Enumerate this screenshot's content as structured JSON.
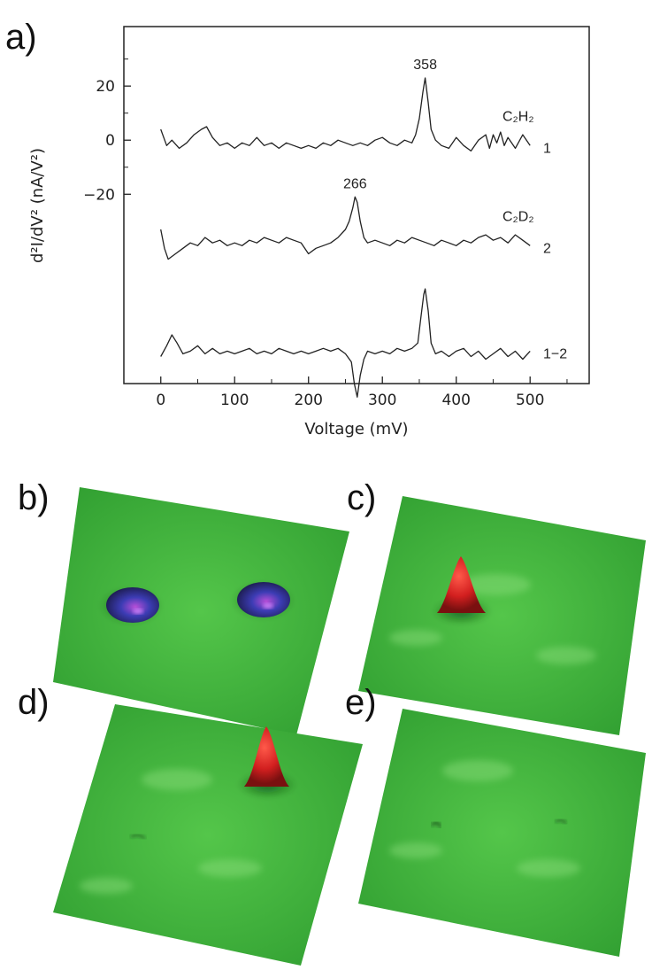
{
  "panels": {
    "a": "a)",
    "b": "b)",
    "c": "c)",
    "d": "d)",
    "e": "e)"
  },
  "chart_data": {
    "type": "line",
    "xlabel": "Voltage (mV)",
    "ylabel": "d²I/dV² (nA/V²)",
    "xlim": [
      -50,
      580
    ],
    "ylim": [
      -90,
      42
    ],
    "x_ticks": [
      "0",
      "100",
      "200",
      "300",
      "400",
      "500"
    ],
    "y_ticks": [
      "20",
      "0",
      "−20"
    ],
    "grid": false,
    "series": [
      {
        "name": "C₂H₂",
        "number": "1",
        "peak_label": "358",
        "x": [
          0,
          8,
          15,
          25,
          35,
          45,
          55,
          62,
          70,
          80,
          90,
          100,
          110,
          120,
          130,
          140,
          150,
          160,
          170,
          180,
          190,
          200,
          210,
          220,
          230,
          240,
          250,
          260,
          270,
          280,
          290,
          300,
          310,
          320,
          330,
          340,
          345,
          350,
          355,
          358,
          362,
          366,
          372,
          380,
          390,
          400,
          410,
          420,
          430,
          440,
          445,
          450,
          455,
          460,
          465,
          470,
          480,
          490,
          500
        ],
        "y": [
          4,
          -2,
          0,
          -3,
          -1,
          2,
          4,
          5,
          1,
          -2,
          -1,
          -3,
          -1,
          -2,
          1,
          -2,
          -1,
          -3,
          -1,
          -2,
          -3,
          -2,
          -3,
          -1,
          -2,
          0,
          -1,
          -2,
          -1,
          -2,
          0,
          1,
          -1,
          -2,
          0,
          -1,
          2,
          8,
          18,
          23,
          14,
          4,
          0,
          -2,
          -3,
          1,
          -2,
          -4,
          0,
          2,
          -3,
          2,
          -1,
          3,
          -2,
          1,
          -3,
          2,
          -2
        ]
      },
      {
        "name": "C₂D₂",
        "number": "2",
        "peak_label": "266",
        "x": [
          0,
          5,
          10,
          20,
          30,
          40,
          50,
          60,
          70,
          80,
          90,
          100,
          110,
          120,
          130,
          140,
          150,
          160,
          170,
          180,
          190,
          200,
          210,
          220,
          230,
          240,
          250,
          255,
          260,
          263,
          266,
          270,
          275,
          280,
          290,
          300,
          310,
          320,
          330,
          340,
          350,
          360,
          370,
          380,
          390,
          400,
          410,
          420,
          430,
          440,
          450,
          460,
          470,
          480,
          490,
          500
        ],
        "y": [
          -33,
          -40,
          -44,
          -42,
          -40,
          -38,
          -39,
          -36,
          -38,
          -37,
          -39,
          -38,
          -39,
          -37,
          -38,
          -36,
          -37,
          -38,
          -36,
          -37,
          -38,
          -42,
          -40,
          -39,
          -38,
          -36,
          -33,
          -30,
          -25,
          -21,
          -23,
          -30,
          -36,
          -38,
          -37,
          -38,
          -39,
          -37,
          -38,
          -36,
          -37,
          -38,
          -39,
          -37,
          -38,
          -39,
          -37,
          -38,
          -36,
          -35,
          -37,
          -36,
          -38,
          -35,
          -37,
          -39
        ]
      },
      {
        "name": "",
        "number": "1−2",
        "peak_label": "",
        "x": [
          0,
          8,
          15,
          22,
          30,
          40,
          50,
          60,
          70,
          80,
          90,
          100,
          110,
          120,
          130,
          140,
          150,
          160,
          170,
          180,
          190,
          200,
          210,
          220,
          230,
          240,
          250,
          258,
          262,
          266,
          270,
          275,
          280,
          290,
          300,
          310,
          320,
          330,
          340,
          348,
          352,
          356,
          358,
          362,
          366,
          372,
          380,
          390,
          400,
          410,
          420,
          430,
          440,
          450,
          460,
          470,
          480,
          490,
          500
        ],
        "y": [
          -80,
          -76,
          -72,
          -75,
          -79,
          -78,
          -76,
          -79,
          -77,
          -79,
          -78,
          -79,
          -78,
          -77,
          -79,
          -78,
          -79,
          -77,
          -78,
          -79,
          -78,
          -79,
          -78,
          -77,
          -78,
          -77,
          -79,
          -82,
          -90,
          -95,
          -87,
          -81,
          -78,
          -79,
          -78,
          -79,
          -77,
          -78,
          -77,
          -75,
          -66,
          -57,
          -55,
          -63,
          -75,
          -79,
          -78,
          -80,
          -78,
          -77,
          -80,
          -78,
          -81,
          -79,
          -77,
          -80,
          -78,
          -81,
          -78
        ]
      }
    ]
  },
  "images": [
    {
      "panel": "b",
      "type": "3d-surface",
      "features": [
        "two depressions"
      ]
    },
    {
      "panel": "c",
      "type": "3d-surface",
      "features": [
        "one peak (left)"
      ]
    },
    {
      "panel": "d",
      "type": "3d-surface",
      "features": [
        "one peak (right)"
      ]
    },
    {
      "panel": "e",
      "type": "3d-surface",
      "features": [
        "flat"
      ]
    }
  ],
  "colors": {
    "surface_green": "#3fb43a",
    "peak_red": "#d21f1f",
    "dip_blue": "#3c3cb4",
    "axis": "#222222"
  }
}
